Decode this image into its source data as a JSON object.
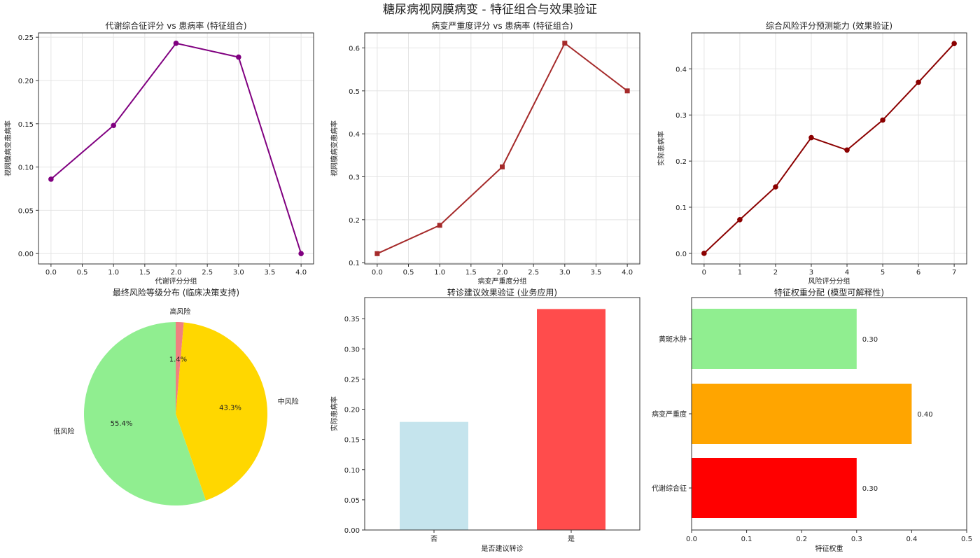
{
  "suptitle": "糖尿病视网膜病变 - 特征组合与效果验证",
  "chart_data": [
    {
      "type": "line",
      "title": "代谢综合征评分 vs 患病率 (特征组合)",
      "xlabel": "代谢评分分组",
      "ylabel": "视网膜病变患病率",
      "x": [
        0,
        1,
        2,
        3,
        4
      ],
      "values": [
        0.086,
        0.148,
        0.243,
        0.227,
        0.0
      ],
      "xlim": [
        -0.2,
        4.2
      ],
      "ylim": [
        -0.012,
        0.255
      ],
      "xticks": [
        0,
        0.5,
        1,
        1.5,
        2,
        2.5,
        3,
        3.5,
        4
      ],
      "xtick_labels": [
        "0.0",
        "0.5",
        "1.0",
        "1.5",
        "2.0",
        "2.5",
        "3.0",
        "3.5",
        "4.0"
      ],
      "yticks": [
        0,
        0.05,
        0.1,
        0.15,
        0.2,
        0.25
      ],
      "ytick_labels": [
        "0.00",
        "0.05",
        "0.10",
        "0.15",
        "0.20",
        "0.25"
      ],
      "color": "#800080",
      "marker": "circle",
      "grid": true
    },
    {
      "type": "line",
      "title": "病变严重度评分 vs 患病率 (特征组合)",
      "xlabel": "病变严重度分组",
      "ylabel": "视网膜病变患病率",
      "x": [
        0,
        1,
        2,
        3,
        4
      ],
      "values": [
        0.121,
        0.187,
        0.323,
        0.611,
        0.5
      ],
      "xlim": [
        -0.2,
        4.2
      ],
      "ylim": [
        0.097,
        0.635
      ],
      "xticks": [
        0,
        0.5,
        1,
        1.5,
        2,
        2.5,
        3,
        3.5,
        4
      ],
      "xtick_labels": [
        "0.0",
        "0.5",
        "1.0",
        "1.5",
        "2.0",
        "2.5",
        "3.0",
        "3.5",
        "4.0"
      ],
      "yticks": [
        0.1,
        0.2,
        0.3,
        0.4,
        0.5,
        0.6
      ],
      "ytick_labels": [
        "0.1",
        "0.2",
        "0.3",
        "0.4",
        "0.5",
        "0.6"
      ],
      "color": "#A52A2A",
      "marker": "square",
      "grid": true
    },
    {
      "type": "line",
      "title": "综合风险评分预测能力 (效果验证)",
      "xlabel": "风险评分分组",
      "ylabel": "实际患病率",
      "x": [
        0,
        1,
        2,
        3,
        4,
        5,
        6,
        7
      ],
      "values": [
        0.0,
        0.073,
        0.144,
        0.251,
        0.224,
        0.289,
        0.371,
        0.455
      ],
      "xlim": [
        -0.35,
        7.35
      ],
      "ylim": [
        -0.023,
        0.478
      ],
      "xticks": [
        0,
        1,
        2,
        3,
        4,
        5,
        6,
        7
      ],
      "xtick_labels": [
        "0",
        "1",
        "2",
        "3",
        "4",
        "5",
        "6",
        "7"
      ],
      "yticks": [
        0,
        0.1,
        0.2,
        0.3,
        0.4
      ],
      "ytick_labels": [
        "0.0",
        "0.1",
        "0.2",
        "0.3",
        "0.4"
      ],
      "color": "#8B0000",
      "marker": "circle",
      "grid": true
    },
    {
      "type": "pie",
      "title": "最终风险等级分布 (临床决策支持)",
      "categories": [
        "低风险",
        "中风险",
        "高风险"
      ],
      "values": [
        55.4,
        43.3,
        1.4
      ],
      "labels": [
        "55.4%",
        "43.3%",
        "1.4%"
      ],
      "colors": [
        "#90EE90",
        "#FFD700",
        "#F08080"
      ],
      "startangle": 90
    },
    {
      "type": "bar",
      "title": "转诊建议效果验证 (业务应用)",
      "xlabel": "是否建议转诊",
      "ylabel": "实际患病率",
      "categories": [
        "否",
        "是"
      ],
      "values": [
        0.179,
        0.366
      ],
      "colors": [
        "#ADD8E6",
        "#FF0000"
      ],
      "ylim": [
        0,
        0.385
      ],
      "yticks": [
        0,
        0.05,
        0.1,
        0.15,
        0.2,
        0.25,
        0.3,
        0.35
      ],
      "ytick_labels": [
        "0.00",
        "0.05",
        "0.10",
        "0.15",
        "0.20",
        "0.25",
        "0.30",
        "0.35"
      ],
      "grid": false
    },
    {
      "type": "bar",
      "orientation": "horizontal",
      "title": "特征权重分配 (模型可解释性)",
      "xlabel": "特征权重",
      "categories": [
        "代谢综合征",
        "病变严重度",
        "黄斑水肿"
      ],
      "values": [
        0.3,
        0.4,
        0.3
      ],
      "labels": [
        "0.30",
        "0.40",
        "0.30"
      ],
      "colors": [
        "#FF0000",
        "#FFA500",
        "#90EE90"
      ],
      "xlim": [
        0,
        0.5
      ],
      "xticks": [
        0,
        0.1,
        0.2,
        0.3,
        0.4,
        0.5
      ],
      "xtick_labels": [
        "0.0",
        "0.1",
        "0.2",
        "0.3",
        "0.4",
        "0.5"
      ],
      "grid": false
    }
  ]
}
